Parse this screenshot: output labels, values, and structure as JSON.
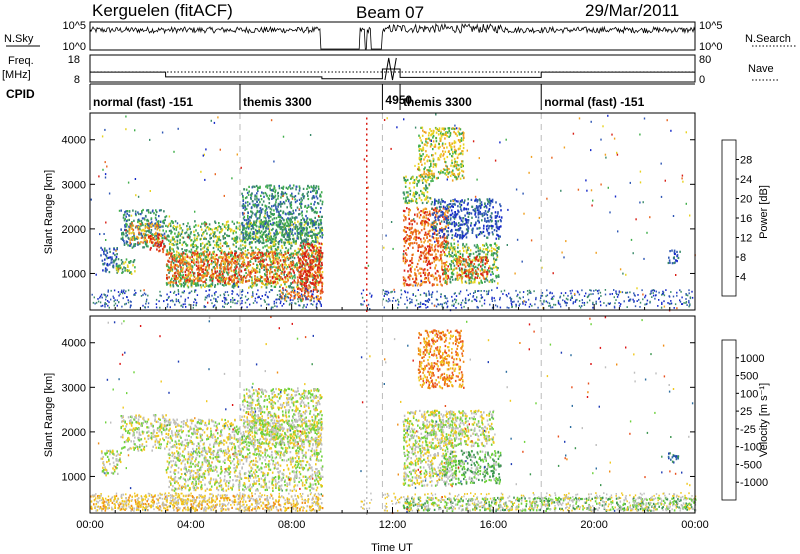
{
  "header": {
    "station": "Kerguelen (fitACF)",
    "beam": "Beam 07",
    "date": "29/Mar/2011"
  },
  "strips": {
    "nsky_label": "N.Sky",
    "nsearch_label": "N.Search",
    "count_ticks": [
      "10^5",
      "10^0"
    ],
    "freq_label": "Freq.",
    "freq_unit": "[MHz]",
    "freq_ticks": [
      "18",
      "8"
    ],
    "nave_label": "Nave",
    "nave_ticks": [
      "80",
      "0"
    ],
    "cpid_label": "CPID"
  },
  "cpid_segments": [
    {
      "label": "normal (fast) -151",
      "start": 0.0,
      "end": 5.95
    },
    {
      "label": "themis 3300",
      "start": 5.95,
      "end": 11.6
    },
    {
      "label": "4950",
      "start": 11.6,
      "end": 12.3
    },
    {
      "label": "themis 3300",
      "start": 12.3,
      "end": 17.9
    },
    {
      "label": "normal (fast) -151",
      "start": 17.9,
      "end": 24.0
    }
  ],
  "chart_data": [
    {
      "type": "heatmap",
      "ylabel": "Slant Range [km]",
      "xlabel": "",
      "xlim": [
        0,
        24
      ],
      "ylim": [
        180,
        4600
      ],
      "yticks": [
        "1000",
        "2000",
        "3000",
        "4000"
      ],
      "colorbar": {
        "label": "Power [dB]",
        "ticks": [
          "4",
          "8",
          "12",
          "16",
          "20",
          "24",
          "28"
        ],
        "colors": [
          "#1428c8",
          "#2d56b4",
          "#3a8a6a",
          "#3fae4a",
          "#e8d21e",
          "#f0a020",
          "#e8641e",
          "#d81e14"
        ]
      },
      "regions": [
        {
          "t0": 0.4,
          "t1": 1.1,
          "r0": 1050,
          "r1": 1600,
          "level": 1
        },
        {
          "t0": 1.0,
          "t1": 1.8,
          "r0": 1000,
          "r1": 1350,
          "level": 3
        },
        {
          "t0": 1.2,
          "t1": 3.0,
          "r0": 1600,
          "r1": 2450,
          "level": 2
        },
        {
          "t0": 1.5,
          "t1": 2.8,
          "r0": 1700,
          "r1": 2150,
          "level": 5
        },
        {
          "t0": 2.3,
          "t1": 3.0,
          "r0": 1500,
          "r1": 1900,
          "level": 7
        },
        {
          "t0": 3.0,
          "t1": 9.2,
          "r0": 700,
          "r1": 2200,
          "level": 3
        },
        {
          "t0": 3.0,
          "t1": 9.2,
          "r0": 800,
          "r1": 1500,
          "level": 6
        },
        {
          "t0": 6.0,
          "t1": 9.2,
          "r0": 1700,
          "r1": 3000,
          "level": 2
        },
        {
          "t0": 8.3,
          "t1": 9.2,
          "r0": 600,
          "r1": 1700,
          "level": 7
        },
        {
          "t0": 7.5,
          "t1": 9.2,
          "r0": 400,
          "r1": 700,
          "level": 6
        },
        {
          "t0": 12.4,
          "t1": 14.2,
          "r0": 750,
          "r1": 2500,
          "level": 6
        },
        {
          "t0": 12.4,
          "t1": 13.5,
          "r0": 2600,
          "r1": 3200,
          "level": 3
        },
        {
          "t0": 13.0,
          "t1": 14.8,
          "r0": 3100,
          "r1": 4300,
          "level": 4
        },
        {
          "t0": 13.5,
          "t1": 16.3,
          "r0": 1800,
          "r1": 2700,
          "level": 1
        },
        {
          "t0": 14.0,
          "t1": 16.2,
          "r0": 800,
          "r1": 1700,
          "level": 3
        },
        {
          "t0": 14.5,
          "t1": 15.8,
          "r0": 900,
          "r1": 1400,
          "level": 6
        },
        {
          "t0": 22.9,
          "t1": 23.4,
          "r0": 1250,
          "r1": 1550,
          "level": 1
        }
      ]
    },
    {
      "type": "heatmap",
      "ylabel": "Slant Range [km]",
      "xlabel": "Time UT",
      "xlim": [
        0,
        24
      ],
      "ylim": [
        180,
        4600
      ],
      "xticks": [
        "00:00",
        "04:00",
        "08:00",
        "12:00",
        "16:00",
        "20:00",
        "00:00"
      ],
      "yticks": [
        "1000",
        "2000",
        "3000",
        "4000"
      ],
      "colorbar": {
        "label": "Velocity [m s⁻¹]",
        "ticks": [
          "1000",
          "500",
          "100",
          "25",
          "-25",
          "-100",
          "-500",
          "-1000"
        ],
        "colors": [
          "#1e3cb4",
          "#2d6ea0",
          "#3c9650",
          "#6ed23c",
          "#bebebe",
          "#f0c81e",
          "#f08c14",
          "#e8501e",
          "#dc1414"
        ]
      },
      "regions": [
        {
          "t0": 0.4,
          "t1": 1.2,
          "r0": 1050,
          "r1": 1650,
          "level": 4
        },
        {
          "t0": 1.2,
          "t1": 3.0,
          "r0": 1600,
          "r1": 2400,
          "level": 4
        },
        {
          "t0": 3.0,
          "t1": 9.2,
          "r0": 700,
          "r1": 2300,
          "level": 4
        },
        {
          "t0": 6.0,
          "t1": 9.2,
          "r0": 1700,
          "r1": 3000,
          "level": 4
        },
        {
          "t0": 0.0,
          "t1": 9.2,
          "r0": 250,
          "r1": 600,
          "level": 5
        },
        {
          "t0": 12.4,
          "t1": 14.5,
          "r0": 800,
          "r1": 2500,
          "level": 4
        },
        {
          "t0": 13.0,
          "t1": 14.8,
          "r0": 3000,
          "r1": 4300,
          "level": 6
        },
        {
          "t0": 14.0,
          "t1": 16.3,
          "r0": 850,
          "r1": 1600,
          "level": 3
        },
        {
          "t0": 13.5,
          "t1": 16.0,
          "r0": 1700,
          "r1": 2500,
          "level": 4
        },
        {
          "t0": 12.4,
          "t1": 24.0,
          "r0": 250,
          "r1": 550,
          "level": 3
        },
        {
          "t0": 22.9,
          "t1": 23.4,
          "r0": 1300,
          "r1": 1550,
          "level": 1
        }
      ]
    }
  ]
}
